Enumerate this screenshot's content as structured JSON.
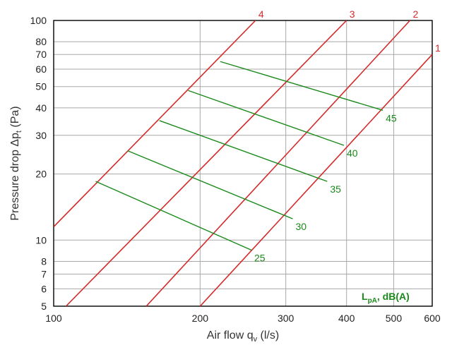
{
  "chart_data": {
    "type": "line",
    "title": "",
    "xlabel": {
      "main": "Air flow q",
      "sub": "v",
      "unit": " (l/s)"
    },
    "ylabel": {
      "main": "Pressure drop Δp",
      "sub": "t",
      "unit": " (Pa)"
    },
    "x_scale": "log",
    "y_scale": "log",
    "xlim": [
      100,
      600
    ],
    "ylim": [
      5,
      100
    ],
    "grid": true,
    "x_ticks": [
      {
        "value": 100,
        "label": "100"
      },
      {
        "value": 200,
        "label": "200"
      },
      {
        "value": 300,
        "label": "300"
      },
      {
        "value": 400,
        "label": "400"
      },
      {
        "value": 500,
        "label": "500"
      },
      {
        "value": 600,
        "label": "600"
      }
    ],
    "y_ticks": [
      {
        "value": 5,
        "label": "5"
      },
      {
        "value": 6,
        "label": "6"
      },
      {
        "value": 7,
        "label": "7"
      },
      {
        "value": 8,
        "label": "8"
      },
      {
        "value": 10,
        "label": "10"
      },
      {
        "value": 20,
        "label": "20"
      },
      {
        "value": 30,
        "label": "30"
      },
      {
        "value": 40,
        "label": "40"
      },
      {
        "value": 50,
        "label": "50"
      },
      {
        "value": 60,
        "label": "60"
      },
      {
        "value": 70,
        "label": "70"
      },
      {
        "value": 80,
        "label": "80"
      },
      {
        "value": 100,
        "label": "100"
      }
    ],
    "x_gridlines": [
      200,
      300,
      400,
      500
    ],
    "y_gridlines": [
      6,
      7,
      8,
      10,
      20,
      30,
      40,
      50,
      60,
      70,
      80
    ],
    "series": [
      {
        "name": "1",
        "color": "#d42a2a",
        "x": [
          200,
          600
        ],
        "y": [
          5,
          70
        ]
      },
      {
        "name": "2",
        "color": "#d42a2a",
        "x": [
          155,
          540
        ],
        "y": [
          5,
          100
        ]
      },
      {
        "name": "3",
        "color": "#d42a2a",
        "x": [
          106,
          400
        ],
        "y": [
          5,
          100
        ]
      },
      {
        "name": "4",
        "color": "#d42a2a",
        "x": [
          100,
          260
        ],
        "y": [
          11.5,
          100
        ]
      }
    ],
    "sound_levels": {
      "label_main": "L",
      "label_sub": "pA",
      "label_unit": ", dB(A)",
      "color": "#1a8a1a",
      "lines": [
        {
          "level": "25",
          "x": [
            122,
            255
          ],
          "y": [
            18.5,
            9
          ]
        },
        {
          "level": "30",
          "x": [
            142,
            310
          ],
          "y": [
            25.5,
            12.5
          ]
        },
        {
          "level": "35",
          "x": [
            165,
            365
          ],
          "y": [
            35,
            18.5
          ]
        },
        {
          "level": "40",
          "x": [
            189,
            395
          ],
          "y": [
            48,
            27
          ]
        },
        {
          "level": "45",
          "x": [
            220,
            475
          ],
          "y": [
            65,
            39
          ]
        }
      ]
    }
  }
}
